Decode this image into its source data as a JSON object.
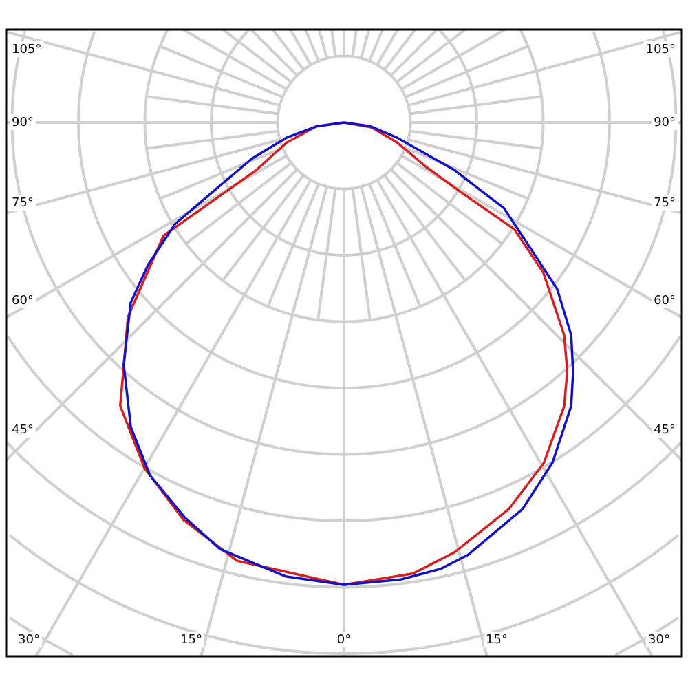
{
  "chart_data": {
    "type": "line",
    "subtype": "polar-luminous-intensity",
    "title": "",
    "angle_labels": {
      "left": [
        "105°",
        "90°",
        "75°",
        "60°",
        "45°"
      ],
      "right": [
        "105°",
        "90°",
        "75°",
        "60°",
        "45°"
      ],
      "bottom": [
        "30°",
        "15°",
        "0°",
        "15°",
        "30°"
      ]
    },
    "angle_label_values": [
      105,
      90,
      75,
      60,
      45
    ],
    "bottom_label_values": [
      -30,
      -15,
      0,
      15,
      30
    ],
    "angle_zero_direction": "down",
    "radial_grid_step_deg": 15,
    "grid": true,
    "value_units": "relative (normalized to 0° = 1)",
    "series": [
      {
        "color": "#d42020",
        "points": [
          [
            -90,
            0
          ],
          [
            -82,
            0.06
          ],
          [
            -70.7,
            0.131
          ],
          [
            -61.5,
            0.216
          ],
          [
            -57.9,
            0.461
          ],
          [
            -48,
            0.629
          ],
          [
            -43,
            0.696
          ],
          [
            -38.3,
            0.781
          ],
          [
            -30,
            0.863
          ],
          [
            -22,
            0.927
          ],
          [
            -13.7,
            0.976
          ],
          [
            0,
            1.0
          ],
          [
            8.7,
            0.987
          ],
          [
            14.4,
            0.96
          ],
          [
            23.1,
            0.909
          ],
          [
            30.4,
            0.854
          ],
          [
            37.8,
            0.777
          ],
          [
            41.9,
            0.723
          ],
          [
            46,
            0.662
          ],
          [
            53,
            0.54
          ],
          [
            57.9,
            0.435
          ],
          [
            59.3,
            0.289
          ],
          [
            61.6,
            0.202
          ],
          [
            69.4,
            0.122
          ],
          [
            80,
            0.06
          ],
          [
            90,
            0
          ]
        ]
      },
      {
        "color": "#1212c4",
        "points": [
          [
            -90,
            0
          ],
          [
            -82,
            0.06
          ],
          [
            -75.2,
            0.128
          ],
          [
            -68.6,
            0.213
          ],
          [
            -63.3,
            0.295
          ],
          [
            -59,
            0.426
          ],
          [
            -54,
            0.524
          ],
          [
            -49.8,
            0.604
          ],
          [
            -42.3,
            0.708
          ],
          [
            -35,
            0.804
          ],
          [
            -28.8,
            0.871
          ],
          [
            -22,
            0.921
          ],
          [
            -16.2,
            0.961
          ],
          [
            -7.3,
            0.99
          ],
          [
            0,
            1.0
          ],
          [
            7.1,
            0.996
          ],
          [
            12.2,
            0.988
          ],
          [
            16,
            0.973
          ],
          [
            24.8,
            0.921
          ],
          [
            31.5,
            0.863
          ],
          [
            38.7,
            0.786
          ],
          [
            42.6,
            0.732
          ],
          [
            46.9,
            0.673
          ],
          [
            52,
            0.585
          ],
          [
            55.3,
            0.501
          ],
          [
            61.8,
            0.393
          ],
          [
            66.7,
            0.259
          ],
          [
            74,
            0.119
          ],
          [
            82,
            0.057
          ],
          [
            90,
            0
          ]
        ]
      }
    ],
    "colors": {
      "grid": "#d0d0d0",
      "frame": "#000000"
    }
  }
}
